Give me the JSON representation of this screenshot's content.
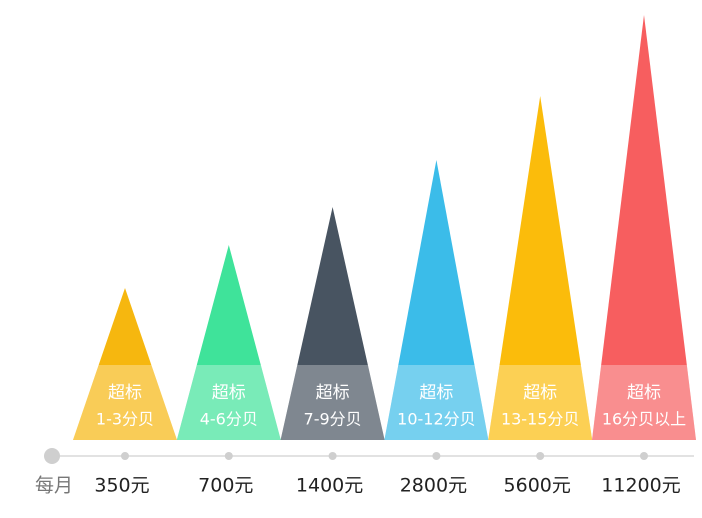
{
  "axis_label": "每月",
  "items": [
    {
      "title": "超标",
      "range": "1-3分贝",
      "price": "350元",
      "color": "#f6b70f"
    },
    {
      "title": "超标",
      "range": "4-6分贝",
      "price": "700元",
      "color": "#3fe39a"
    },
    {
      "title": "超标",
      "range": "7-9分贝",
      "price": "1400元",
      "color": "#485461"
    },
    {
      "title": "超标",
      "range": "10-12分贝",
      "price": "2800元",
      "color": "#3bbce9"
    },
    {
      "title": "超标",
      "range": "13-15分贝",
      "price": "5600元",
      "color": "#fbbc0b"
    },
    {
      "title": "超标",
      "range": "16分贝以上",
      "price": "11200元",
      "color": "#f75e5f"
    }
  ]
}
